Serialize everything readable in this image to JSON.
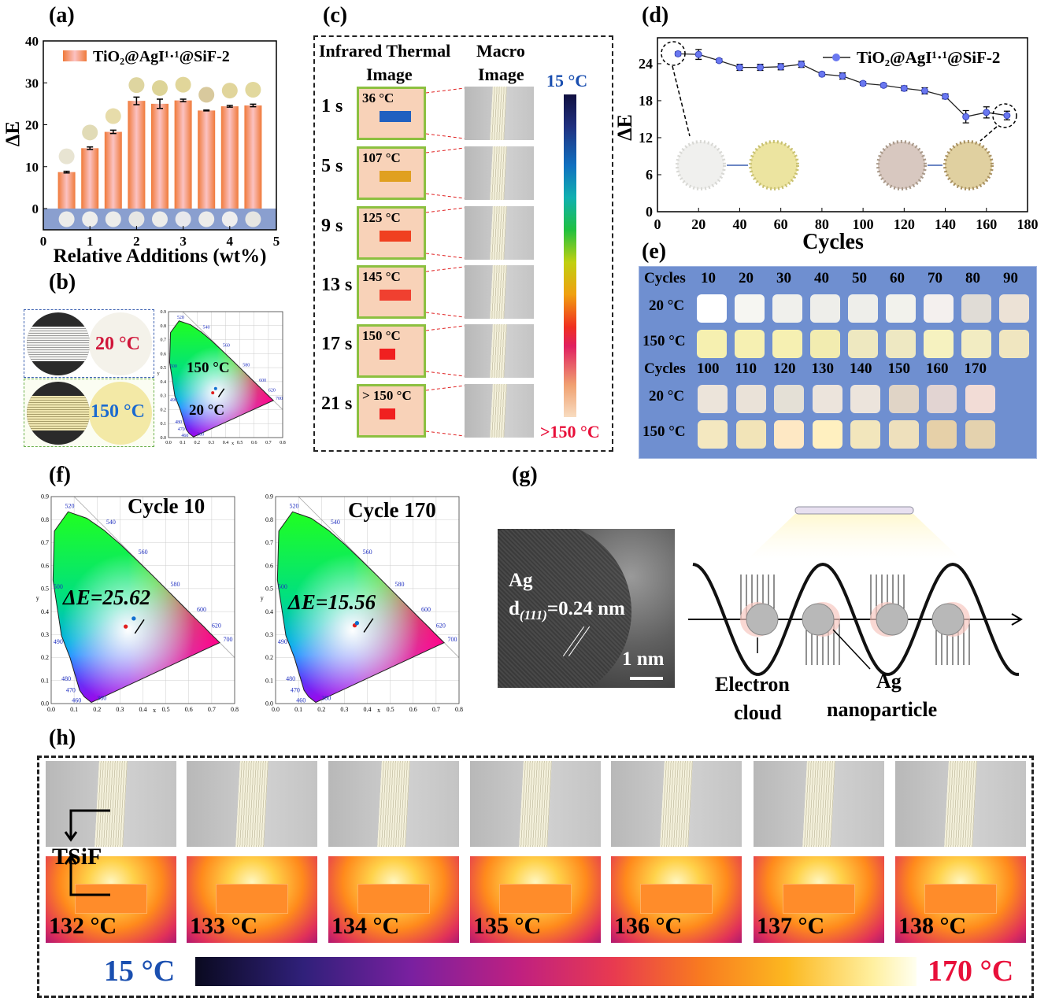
{
  "panel_labels": {
    "a": "(a)",
    "b": "(b)",
    "c": "(c)",
    "d": "(d)",
    "e": "(e)",
    "f": "(f)",
    "g": "(g)",
    "h": "(h)"
  },
  "colors": {
    "bar_edge": "#f07a3a",
    "bar_center": "#fbc2c2",
    "band": "#8a9fcf",
    "line_marker": "#6a78f0",
    "e_background": "#6f8fd0",
    "hot_text": "#e8103a",
    "cold_text": "#1a4fb0"
  },
  "chart_data": [
    {
      "id": "a",
      "type": "bar",
      "legend": "TiO₂@AgI¹·¹@SiF-2",
      "xlabel": "Relative Additions (wt%)",
      "ylabel": "ΔE",
      "x": [
        0.5,
        1.0,
        1.5,
        2.0,
        2.5,
        3.0,
        3.5,
        4.0,
        4.5
      ],
      "values": [
        8.7,
        14.4,
        18.3,
        25.7,
        25.0,
        25.8,
        23.4,
        24.4,
        24.6
      ],
      "errors": [
        0.2,
        0.3,
        0.4,
        0.9,
        1.1,
        0.3,
        0.1,
        0.2,
        0.3
      ],
      "xlim": [
        0,
        5
      ],
      "ylim": [
        -5,
        40
      ],
      "xticks": [
        "0",
        "1",
        "2",
        "3",
        "4",
        "5"
      ],
      "yticks": [
        "0",
        "10",
        "20",
        "30",
        "40"
      ],
      "heated_sample_colors": [
        "#e8e4d2",
        "#e1dbb6",
        "#e7dcaa",
        "#ded5a0",
        "#ddd497",
        "#e1d69a",
        "#d8c99d",
        "#e1d59b",
        "#e2d89d"
      ],
      "unheated_sample_colors": [
        "#ececea",
        "#eeeeec",
        "#ececea",
        "#e6e6e4",
        "#ececea",
        "#e8e8ec",
        "#ececea",
        "#eeeeee",
        "#e6e6e2"
      ]
    },
    {
      "id": "d",
      "type": "line",
      "legend": "TiO₂@AgI¹·¹@SiF-2",
      "xlabel": "Cycles",
      "ylabel": "ΔE",
      "x": [
        10,
        20,
        30,
        40,
        50,
        60,
        70,
        80,
        90,
        100,
        110,
        120,
        130,
        140,
        150,
        160,
        170
      ],
      "values": [
        25.6,
        25.5,
        24.5,
        23.4,
        23.4,
        23.5,
        23.9,
        22.3,
        22.0,
        20.8,
        20.5,
        20.0,
        19.6,
        18.7,
        15.4,
        16.1,
        15.6
      ],
      "errors": [
        0.3,
        0.8,
        0.3,
        0.5,
        0.5,
        0.5,
        0.5,
        0.3,
        0.5,
        0.3,
        0.3,
        0.4,
        0.5,
        0.4,
        1.0,
        0.9,
        0.7
      ],
      "xlim": [
        0,
        180
      ],
      "ylim": [
        0,
        28.2
      ],
      "xticks": [
        "0",
        "20",
        "40",
        "60",
        "80",
        "100",
        "120",
        "140",
        "160",
        "180"
      ],
      "yticks": [
        "0",
        "6",
        "12",
        "18",
        "24"
      ]
    }
  ],
  "panel_b": {
    "cold": "20 °C",
    "hot": "150 °C",
    "cie_hot": "150 °C",
    "cie_cold": "20 °C"
  },
  "panel_c": {
    "header_thermal": "Infrared Thermal Image",
    "header_thermal_1": "Infrared Thermal",
    "header_thermal_2": "Image",
    "header_macro_1": "Macro",
    "header_macro_2": "Image",
    "colorbar_low": "15 °C",
    "colorbar_high": ">150 °C",
    "rows": [
      {
        "time": "1 s",
        "temp": "36 °C"
      },
      {
        "time": "5 s",
        "temp": "107 °C"
      },
      {
        "time": "9 s",
        "temp": "125 °C"
      },
      {
        "time": "13 s",
        "temp": "145 °C"
      },
      {
        "time": "17 s",
        "temp": "150 °C"
      },
      {
        "time": "21 s",
        "temp": "> 150 °C"
      }
    ]
  },
  "panel_e": {
    "header": "Cycles",
    "row_cold": "20 °C",
    "row_hot": "150 °C",
    "groups": [
      {
        "cycles": [
          "10",
          "20",
          "30",
          "40",
          "50",
          "60",
          "70",
          "80",
          "90"
        ],
        "cold": [
          "#ffffff",
          "#f6f6f2",
          "#f0f0ec",
          "#eeeeea",
          "#eeeeea",
          "#f2f2ec",
          "#f4f0ee",
          "#e0dcd6",
          "#ece2d6"
        ],
        "hot": [
          "#f6f0b0",
          "#f6f0b2",
          "#f6f0b2",
          "#f2ecb0",
          "#eee8c0",
          "#eee8c2",
          "#f6f2c0",
          "#f2ecc2",
          "#f0e6c0"
        ]
      },
      {
        "cycles": [
          "100",
          "110",
          "120",
          "130",
          "140",
          "150",
          "160",
          "170"
        ],
        "cold": [
          "#ece4da",
          "#eae2d8",
          "#e4e0d6",
          "#ece4dc",
          "#ece4dc",
          "#e0d4c6",
          "#e2d4d2",
          "#f2dcd6"
        ],
        "hot": [
          "#f4e8c0",
          "#f2e4b8",
          "#fee8c4",
          "#fff0c0",
          "#f2e6bc",
          "#eee0bc",
          "#e6d0a8",
          "#e4d2ae"
        ]
      }
    ]
  },
  "panel_f": [
    {
      "title": "Cycle 10",
      "delta": "ΔE=25.62"
    },
    {
      "title": "Cycle 170",
      "delta": "ΔE=15.56"
    }
  ],
  "cie_axes": {
    "x_ticks": [
      "0.0",
      "0.1",
      "0.2",
      "0.3",
      "0.4",
      "0.5",
      "0.6",
      "0.7",
      "0.8"
    ],
    "y_ticks": [
      "0.0",
      "0.1",
      "0.2",
      "0.3",
      "0.4",
      "0.5",
      "0.6",
      "0.7",
      "0.8",
      "0.9"
    ],
    "xlabel": "x",
    "ylabel": "y",
    "wavelengths": [
      "380",
      "460",
      "470",
      "480",
      "490",
      "500",
      "520",
      "540",
      "560",
      "580",
      "600",
      "620",
      "700"
    ]
  },
  "panel_g": {
    "ag": "Ag",
    "d_prefix": "d",
    "d_sub": "(111)",
    "d_value": "=0.24 nm",
    "scale": "1 nm",
    "electron_1": "Electron",
    "electron_2": "cloud",
    "np_1": "Ag",
    "np_2": "nanoparticle"
  },
  "panel_h": {
    "sample": "TSiF",
    "temps": [
      "132 °C",
      "133 °C",
      "134 °C",
      "135 °C",
      "136 °C",
      "137 °C",
      "138 °C"
    ],
    "colorbar_low": "15 °C",
    "colorbar_high": "170 °C"
  }
}
